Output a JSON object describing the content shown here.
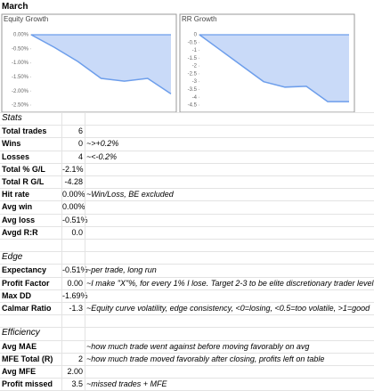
{
  "sheet": {
    "title": "March",
    "sections": [
      {
        "title": "Stats",
        "rows": [
          {
            "label": "Total trades",
            "value": "6"
          },
          {
            "label": "Wins",
            "value": "0",
            "note": "~>+0.2%"
          },
          {
            "label": "Losses",
            "value": "4",
            "note": "~<-0.2%"
          },
          {
            "label": "Total % G/L",
            "value": "-2.1%"
          },
          {
            "label": "Total R G/L",
            "value": "-4.28"
          },
          {
            "label": "Hit rate",
            "value": "0.00%",
            "note": "~Win/Loss, BE excluded"
          },
          {
            "label": "Avg win",
            "value": "0.00%"
          },
          {
            "label": "Avg loss",
            "value": "-0.51%"
          },
          {
            "label": "Avgd R:R",
            "value": "0.0"
          }
        ]
      },
      {
        "title": "Edge",
        "rows": [
          {
            "label": "Expectancy",
            "value": "-0.51%",
            "note": "~per trade, long run"
          },
          {
            "label": "Profit Factor",
            "value": "0.00",
            "note": "~I make \"X\"%, for every 1% I lose. Target 2-3 to be elite discretionary trader level"
          },
          {
            "label": "Max DD",
            "value": "-1.69%"
          },
          {
            "label": "Calmar Ratio",
            "value": "-1.3",
            "note": "~Equity curve volatility, edge consistency, <0=losing, <0.5=too volatile, >1=good"
          }
        ]
      },
      {
        "title": "Efficiency",
        "rows": [
          {
            "label": "Avg MAE",
            "note": "~how much trade went against before moving favorably on avg"
          },
          {
            "label": "MFE Total (R)",
            "value": "2",
            "note": "~how much trade moved favorably after closing, profits left on table"
          },
          {
            "label": "Avg MFE",
            "value": "2.00"
          },
          {
            "label": "Profit missed",
            "value": "3.5",
            "note": "~missed trades + MFE"
          }
        ]
      }
    ]
  },
  "chart_data": [
    {
      "type": "line",
      "title": "Equity Growth",
      "color": "#6d9eeb",
      "fill": "#c9daf8",
      "values": [
        0,
        -0.45,
        -0.95,
        -1.55,
        -1.65,
        -1.55,
        -2.1
      ],
      "ylim": [
        -2.5,
        0
      ],
      "yticks": [
        {
          "value": 0,
          "label": "0.00%"
        },
        {
          "value": -0.5,
          "label": "-0.50%"
        },
        {
          "value": -1,
          "label": "-1.00%"
        },
        {
          "value": -1.5,
          "label": "-1.50%"
        },
        {
          "value": -2,
          "label": "-2.00%"
        },
        {
          "value": -2.5,
          "label": "-2.50%"
        }
      ]
    },
    {
      "type": "line",
      "title": "RR Growth",
      "color": "#6d9eeb",
      "fill": "#c9daf8",
      "values": [
        0,
        -1,
        -2,
        -3,
        -3.35,
        -3.3,
        -4.28,
        -4.28
      ],
      "ylim": [
        -4.5,
        0
      ],
      "yticks": [
        0,
        -0.5,
        -1,
        -1.5,
        -2,
        -2.5,
        -3,
        -3.5,
        -4,
        -4.5
      ]
    }
  ]
}
